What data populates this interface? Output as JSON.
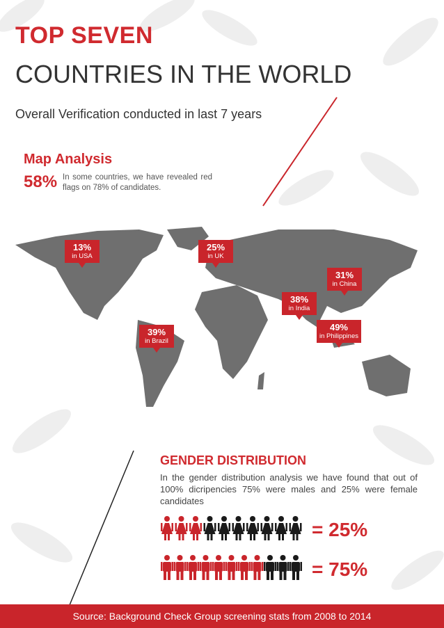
{
  "header": {
    "title_line1": "TOP SEVEN",
    "title_line2": "COUNTRIES IN THE WORLD",
    "subtitle": "Overall Verification conducted in last 7 years"
  },
  "map_analysis": {
    "heading": "Map Analysis",
    "stat": "58%",
    "description": "In some countries, we have revealed red flags on 78% of candidates.",
    "callouts": [
      {
        "value": "13%",
        "label": "in USA"
      },
      {
        "value": "25%",
        "label": "in UK"
      },
      {
        "value": "31%",
        "label": "in China"
      },
      {
        "value": "38%",
        "label": "in India"
      },
      {
        "value": "39%",
        "label": "in Brazil"
      },
      {
        "value": "49%",
        "label": "in Philippines"
      }
    ]
  },
  "gender": {
    "heading": "GENDER DISTRIBUTION",
    "text": "In the gender distribution analysis we have found that out of 100% dicripencies 75% were males and 25% were female candidates",
    "female_result": "= 25%",
    "male_result": "= 75%"
  },
  "footer": {
    "source": "Source: Background Check Group screening stats from 2008 to 2014"
  }
}
